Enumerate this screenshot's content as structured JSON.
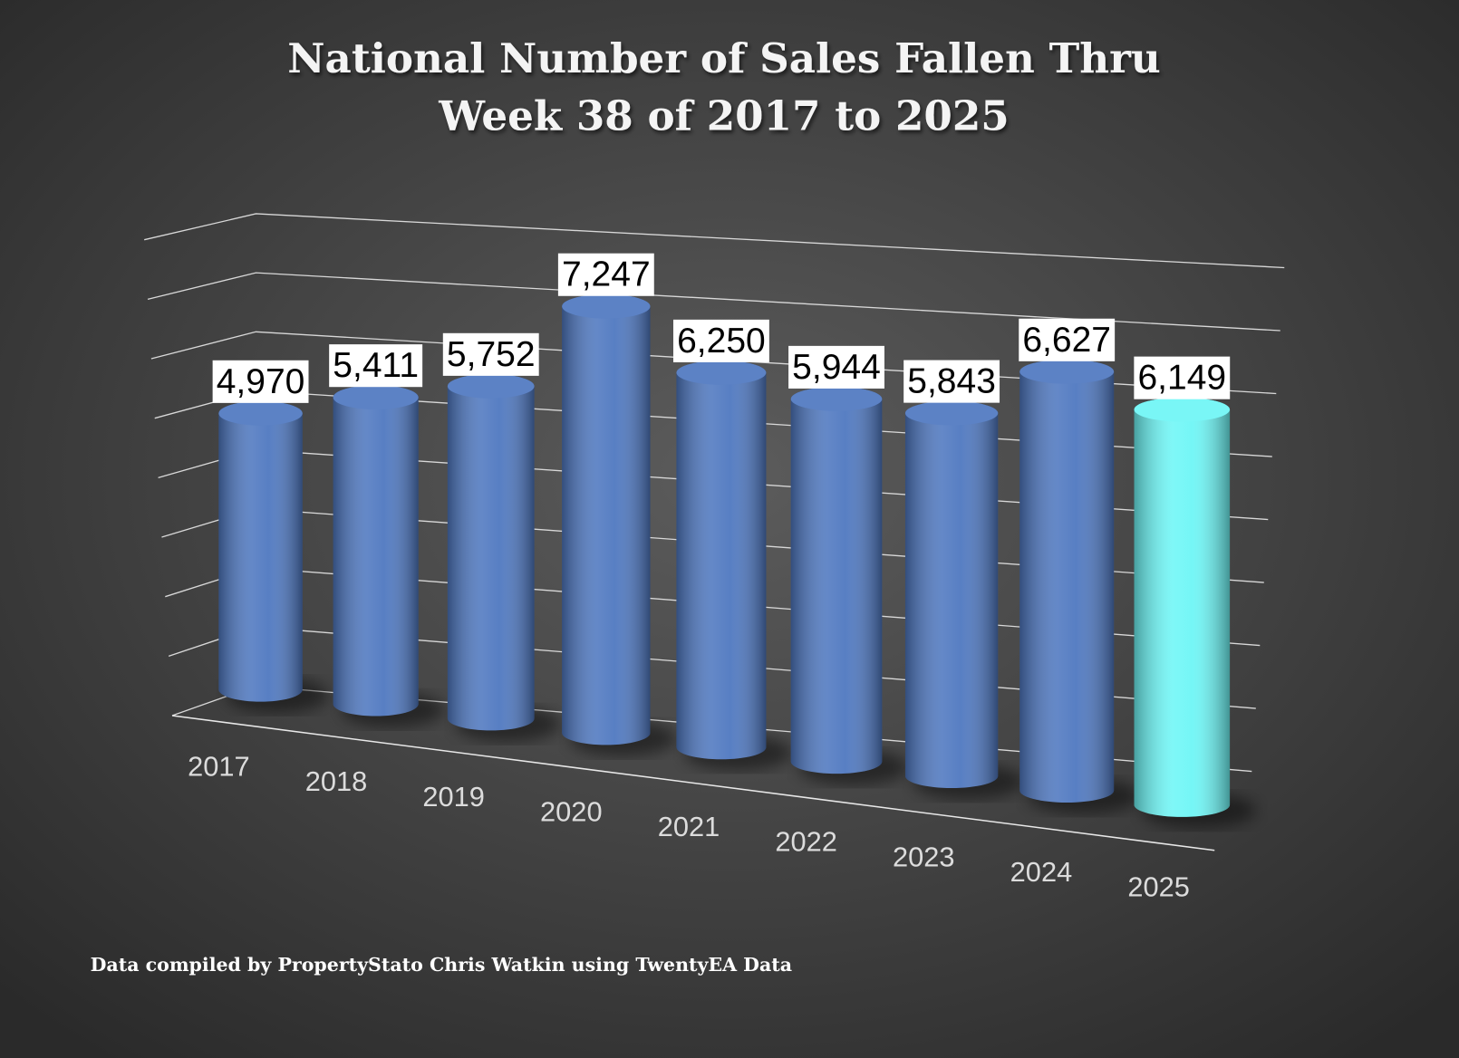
{
  "chart_data": {
    "type": "bar3d",
    "title_lines": [
      "National Number of Sales Fallen Thru",
      "Week 38 of 2017 to 2025"
    ],
    "categories": [
      "2017",
      "2018",
      "2019",
      "2020",
      "2021",
      "2022",
      "2023",
      "2024",
      "2025"
    ],
    "values": [
      4970,
      5411,
      5752,
      7247,
      6250,
      5944,
      5843,
      6627,
      6149
    ],
    "value_labels": [
      "4,970",
      "5,411",
      "5,752",
      "7,247",
      "6,250",
      "5,944",
      "5,843",
      "6,627",
      "6,149"
    ],
    "colors": [
      "#4f78c0",
      "#4f78c0",
      "#4f78c0",
      "#4f78c0",
      "#4f78c0",
      "#4f78c0",
      "#4f78c0",
      "#4f78c0",
      "#6ef6f6"
    ],
    "ylim": [
      0,
      8000
    ],
    "yticks": [
      0,
      1000,
      2000,
      3000,
      4000,
      5000,
      6000,
      7000,
      8000
    ],
    "grid": true,
    "note": "Data compiled by PropertyStato Chris Watkin using TwentyEA Data"
  }
}
